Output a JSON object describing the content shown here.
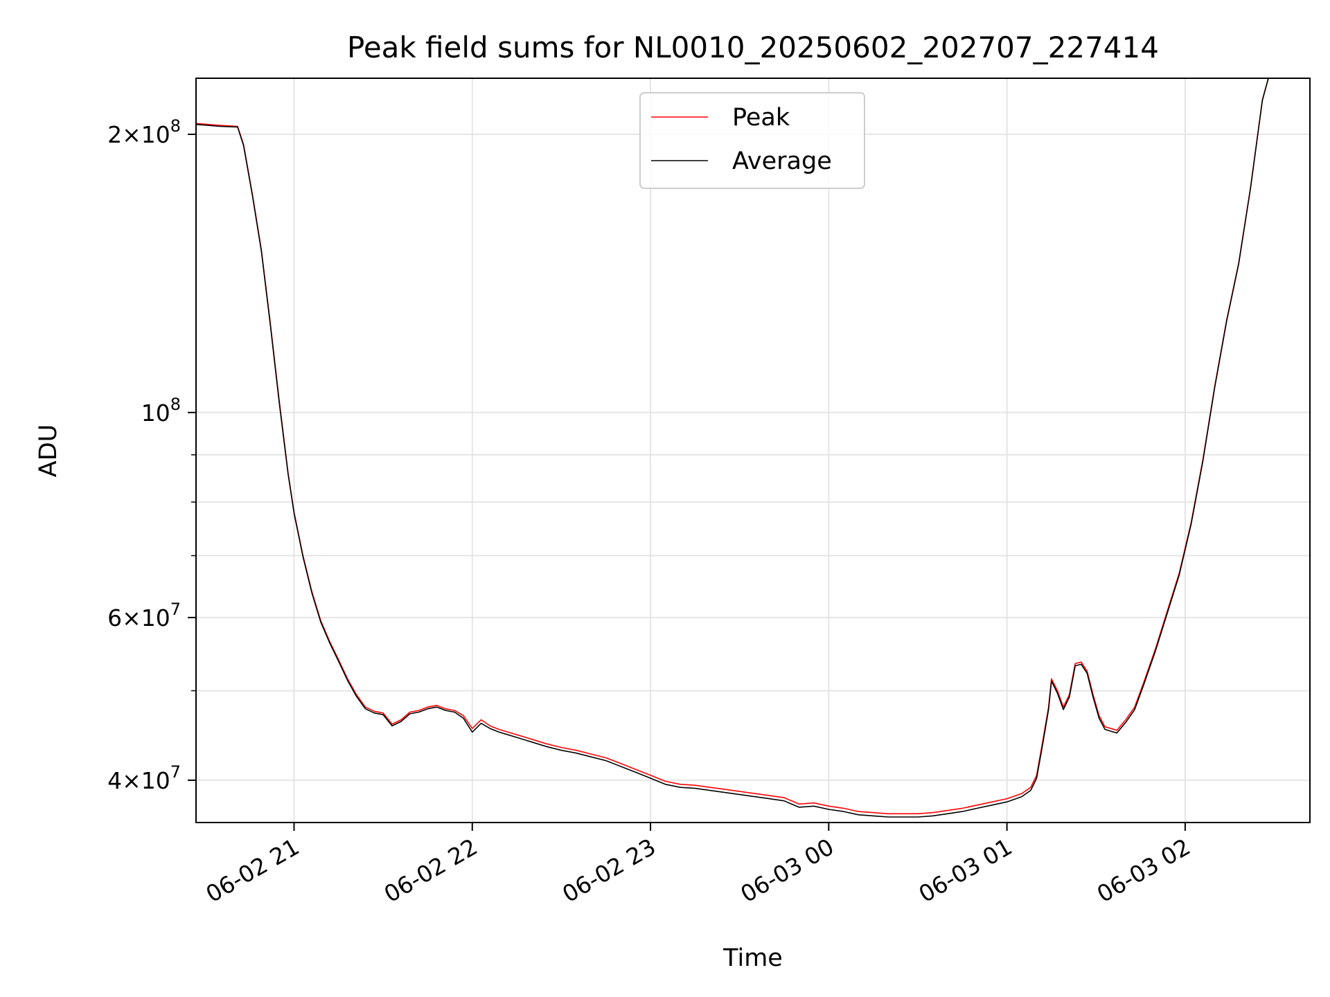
{
  "chart_data": {
    "type": "line",
    "title": "Peak field sums for NL0010_20250602_202707_227414",
    "xlabel": "Time",
    "ylabel": "ADU",
    "yscale": "log",
    "grid": true,
    "legend_position": "upper center",
    "xlim": [
      "2025-06-02 20:27",
      "2025-06-03 02:42"
    ],
    "ylim": [
      36000000,
      230000000
    ],
    "x_ticks": [
      {
        "value": "2025-06-02 21:00",
        "label": "06-02 21"
      },
      {
        "value": "2025-06-02 22:00",
        "label": "06-02 22"
      },
      {
        "value": "2025-06-02 23:00",
        "label": "06-02 23"
      },
      {
        "value": "2025-06-03 00:00",
        "label": "06-03 00"
      },
      {
        "value": "2025-06-03 01:00",
        "label": "06-03 01"
      },
      {
        "value": "2025-06-03 02:00",
        "label": "06-03 02"
      }
    ],
    "y_major_ticks": [
      {
        "value": 40000000,
        "mantissa": "4",
        "exponent": "7"
      },
      {
        "value": 60000000,
        "mantissa": "6",
        "exponent": "7"
      },
      {
        "value": 100000000,
        "mantissa": "",
        "exponent": "8"
      },
      {
        "value": 200000000,
        "mantissa": "2",
        "exponent": "8"
      }
    ],
    "y_minor_ticks": [
      50000000,
      70000000,
      80000000,
      90000000
    ],
    "series": [
      {
        "name": "Peak",
        "color": "#ff0000",
        "points": [
          [
            "2025-06-02 20:27",
            205500000
          ],
          [
            "2025-06-02 20:35",
            204500000
          ],
          [
            "2025-06-02 20:41",
            204000000
          ],
          [
            "2025-06-02 20:43",
            195000000
          ],
          [
            "2025-06-02 20:46",
            172000000
          ],
          [
            "2025-06-02 20:49",
            150000000
          ],
          [
            "2025-06-02 20:52",
            125000000
          ],
          [
            "2025-06-02 20:55",
            103000000
          ],
          [
            "2025-06-02 20:58",
            86000000
          ],
          [
            "2025-06-02 21:00",
            78000000
          ],
          [
            "2025-06-02 21:03",
            70000000
          ],
          [
            "2025-06-02 21:06",
            64000000
          ],
          [
            "2025-06-02 21:09",
            59500000
          ],
          [
            "2025-06-02 21:12",
            56500000
          ],
          [
            "2025-06-02 21:15",
            54000000
          ],
          [
            "2025-06-02 21:18",
            51500000
          ],
          [
            "2025-06-02 21:21",
            49500000
          ],
          [
            "2025-06-02 21:24",
            48000000
          ],
          [
            "2025-06-02 21:27",
            47500000
          ],
          [
            "2025-06-02 21:30",
            47300000
          ],
          [
            "2025-06-02 21:33",
            46000000
          ],
          [
            "2025-06-02 21:36",
            46500000
          ],
          [
            "2025-06-02 21:39",
            47400000
          ],
          [
            "2025-06-02 21:42",
            47600000
          ],
          [
            "2025-06-02 21:45",
            48000000
          ],
          [
            "2025-06-02 21:48",
            48200000
          ],
          [
            "2025-06-02 21:51",
            47800000
          ],
          [
            "2025-06-02 21:54",
            47600000
          ],
          [
            "2025-06-02 21:57",
            47000000
          ],
          [
            "2025-06-02 22:00",
            45500000
          ],
          [
            "2025-06-02 22:03",
            46500000
          ],
          [
            "2025-06-02 22:06",
            45800000
          ],
          [
            "2025-06-02 22:09",
            45400000
          ],
          [
            "2025-06-02 22:12",
            45100000
          ],
          [
            "2025-06-02 22:15",
            44800000
          ],
          [
            "2025-06-02 22:20",
            44300000
          ],
          [
            "2025-06-02 22:25",
            43800000
          ],
          [
            "2025-06-02 22:30",
            43400000
          ],
          [
            "2025-06-02 22:35",
            43100000
          ],
          [
            "2025-06-02 22:40",
            42700000
          ],
          [
            "2025-06-02 22:45",
            42300000
          ],
          [
            "2025-06-02 22:50",
            41700000
          ],
          [
            "2025-06-02 22:55",
            41100000
          ],
          [
            "2025-06-02 23:00",
            40500000
          ],
          [
            "2025-06-02 23:05",
            39900000
          ],
          [
            "2025-06-02 23:10",
            39600000
          ],
          [
            "2025-06-02 23:15",
            39500000
          ],
          [
            "2025-06-02 23:20",
            39300000
          ],
          [
            "2025-06-02 23:25",
            39100000
          ],
          [
            "2025-06-02 23:30",
            38900000
          ],
          [
            "2025-06-02 23:35",
            38700000
          ],
          [
            "2025-06-02 23:40",
            38500000
          ],
          [
            "2025-06-02 23:45",
            38300000
          ],
          [
            "2025-06-02 23:50",
            37700000
          ],
          [
            "2025-06-02 23:55",
            37800000
          ],
          [
            "2025-06-03 00:00",
            37500000
          ],
          [
            "2025-06-03 00:05",
            37300000
          ],
          [
            "2025-06-03 00:10",
            37000000
          ],
          [
            "2025-06-03 00:15",
            36900000
          ],
          [
            "2025-06-03 00:20",
            36800000
          ],
          [
            "2025-06-03 00:25",
            36800000
          ],
          [
            "2025-06-03 00:30",
            36800000
          ],
          [
            "2025-06-03 00:35",
            36900000
          ],
          [
            "2025-06-03 00:40",
            37100000
          ],
          [
            "2025-06-03 00:45",
            37300000
          ],
          [
            "2025-06-03 00:50",
            37600000
          ],
          [
            "2025-06-03 00:55",
            37900000
          ],
          [
            "2025-06-03 01:00",
            38200000
          ],
          [
            "2025-06-03 01:05",
            38700000
          ],
          [
            "2025-06-03 01:08",
            39300000
          ],
          [
            "2025-06-03 01:10",
            40500000
          ],
          [
            "2025-06-03 01:12",
            44000000
          ],
          [
            "2025-06-03 01:14",
            48000000
          ],
          [
            "2025-06-03 01:15",
            51500000
          ],
          [
            "2025-06-03 01:17",
            50000000
          ],
          [
            "2025-06-03 01:19",
            48000000
          ],
          [
            "2025-06-03 01:21",
            49500000
          ],
          [
            "2025-06-03 01:23",
            53500000
          ],
          [
            "2025-06-03 01:25",
            53700000
          ],
          [
            "2025-06-03 01:27",
            52500000
          ],
          [
            "2025-06-03 01:29",
            49500000
          ],
          [
            "2025-06-03 01:31",
            47000000
          ],
          [
            "2025-06-03 01:33",
            45700000
          ],
          [
            "2025-06-03 01:35",
            45500000
          ],
          [
            "2025-06-03 01:37",
            45300000
          ],
          [
            "2025-06-03 01:40",
            46500000
          ],
          [
            "2025-06-03 01:43",
            48000000
          ],
          [
            "2025-06-03 01:46",
            51000000
          ],
          [
            "2025-06-03 01:50",
            55500000
          ],
          [
            "2025-06-03 01:54",
            61000000
          ],
          [
            "2025-06-03 01:58",
            67000000
          ],
          [
            "2025-06-03 02:02",
            76000000
          ],
          [
            "2025-06-03 02:06",
            89000000
          ],
          [
            "2025-06-03 02:10",
            107000000
          ],
          [
            "2025-06-03 02:14",
            126000000
          ],
          [
            "2025-06-03 02:18",
            145000000
          ],
          [
            "2025-06-03 02:22",
            175000000
          ],
          [
            "2025-06-03 02:26",
            218000000
          ],
          [
            "2025-06-03 02:28",
            230000000
          ]
        ]
      },
      {
        "name": "Average",
        "color": "#000000",
        "points": [
          [
            "2025-06-02 20:27",
            205000000
          ],
          [
            "2025-06-02 20:35",
            204000000
          ],
          [
            "2025-06-02 20:41",
            203700000
          ],
          [
            "2025-06-02 20:43",
            194500000
          ],
          [
            "2025-06-02 20:46",
            171500000
          ],
          [
            "2025-06-02 20:49",
            149500000
          ],
          [
            "2025-06-02 20:52",
            124500000
          ],
          [
            "2025-06-02 20:55",
            102500000
          ],
          [
            "2025-06-02 20:58",
            85800000
          ],
          [
            "2025-06-02 21:00",
            77800000
          ],
          [
            "2025-06-02 21:03",
            69800000
          ],
          [
            "2025-06-02 21:06",
            63800000
          ],
          [
            "2025-06-02 21:09",
            59300000
          ],
          [
            "2025-06-02 21:12",
            56300000
          ],
          [
            "2025-06-02 21:15",
            53800000
          ],
          [
            "2025-06-02 21:18",
            51300000
          ],
          [
            "2025-06-02 21:21",
            49300000
          ],
          [
            "2025-06-02 21:24",
            47800000
          ],
          [
            "2025-06-02 21:27",
            47300000
          ],
          [
            "2025-06-02 21:30",
            47100000
          ],
          [
            "2025-06-02 21:33",
            45800000
          ],
          [
            "2025-06-02 21:36",
            46300000
          ],
          [
            "2025-06-02 21:39",
            47200000
          ],
          [
            "2025-06-02 21:42",
            47400000
          ],
          [
            "2025-06-02 21:45",
            47800000
          ],
          [
            "2025-06-02 21:48",
            48000000
          ],
          [
            "2025-06-02 21:51",
            47600000
          ],
          [
            "2025-06-02 21:54",
            47400000
          ],
          [
            "2025-06-02 21:57",
            46700000
          ],
          [
            "2025-06-02 22:00",
            45100000
          ],
          [
            "2025-06-02 22:03",
            46100000
          ],
          [
            "2025-06-02 22:06",
            45500000
          ],
          [
            "2025-06-02 22:09",
            45100000
          ],
          [
            "2025-06-02 22:12",
            44800000
          ],
          [
            "2025-06-02 22:15",
            44500000
          ],
          [
            "2025-06-02 22:20",
            44000000
          ],
          [
            "2025-06-02 22:25",
            43500000
          ],
          [
            "2025-06-02 22:30",
            43100000
          ],
          [
            "2025-06-02 22:35",
            42800000
          ],
          [
            "2025-06-02 22:40",
            42400000
          ],
          [
            "2025-06-02 22:45",
            42000000
          ],
          [
            "2025-06-02 22:50",
            41400000
          ],
          [
            "2025-06-02 22:55",
            40800000
          ],
          [
            "2025-06-02 23:00",
            40200000
          ],
          [
            "2025-06-02 23:05",
            39600000
          ],
          [
            "2025-06-02 23:10",
            39300000
          ],
          [
            "2025-06-02 23:15",
            39200000
          ],
          [
            "2025-06-02 23:20",
            39000000
          ],
          [
            "2025-06-02 23:25",
            38800000
          ],
          [
            "2025-06-02 23:30",
            38600000
          ],
          [
            "2025-06-02 23:35",
            38400000
          ],
          [
            "2025-06-02 23:40",
            38200000
          ],
          [
            "2025-06-02 23:45",
            38000000
          ],
          [
            "2025-06-02 23:50",
            37400000
          ],
          [
            "2025-06-02 23:55",
            37500000
          ],
          [
            "2025-06-03 00:00",
            37200000
          ],
          [
            "2025-06-03 00:05",
            37000000
          ],
          [
            "2025-06-03 00:10",
            36700000
          ],
          [
            "2025-06-03 00:15",
            36600000
          ],
          [
            "2025-06-03 00:20",
            36500000
          ],
          [
            "2025-06-03 00:25",
            36500000
          ],
          [
            "2025-06-03 00:30",
            36500000
          ],
          [
            "2025-06-03 00:35",
            36600000
          ],
          [
            "2025-06-03 00:40",
            36800000
          ],
          [
            "2025-06-03 00:45",
            37000000
          ],
          [
            "2025-06-03 00:50",
            37300000
          ],
          [
            "2025-06-03 00:55",
            37600000
          ],
          [
            "2025-06-03 01:00",
            37900000
          ],
          [
            "2025-06-03 01:05",
            38400000
          ],
          [
            "2025-06-03 01:08",
            39000000
          ],
          [
            "2025-06-03 01:10",
            40200000
          ],
          [
            "2025-06-03 01:12",
            43700000
          ],
          [
            "2025-06-03 01:14",
            47700000
          ],
          [
            "2025-06-03 01:15",
            51200000
          ],
          [
            "2025-06-03 01:17",
            49700000
          ],
          [
            "2025-06-03 01:19",
            47700000
          ],
          [
            "2025-06-03 01:21",
            49200000
          ],
          [
            "2025-06-03 01:23",
            53200000
          ],
          [
            "2025-06-03 01:25",
            53400000
          ],
          [
            "2025-06-03 01:27",
            52200000
          ],
          [
            "2025-06-03 01:29",
            49200000
          ],
          [
            "2025-06-03 01:31",
            46700000
          ],
          [
            "2025-06-03 01:33",
            45400000
          ],
          [
            "2025-06-03 01:35",
            45200000
          ],
          [
            "2025-06-03 01:37",
            45000000
          ],
          [
            "2025-06-03 01:40",
            46200000
          ],
          [
            "2025-06-03 01:43",
            47700000
          ],
          [
            "2025-06-03 01:46",
            50700000
          ],
          [
            "2025-06-03 01:50",
            55200000
          ],
          [
            "2025-06-03 01:54",
            60700000
          ],
          [
            "2025-06-03 01:58",
            66700000
          ],
          [
            "2025-06-03 02:02",
            75700000
          ],
          [
            "2025-06-03 02:06",
            88700000
          ],
          [
            "2025-06-03 02:10",
            106700000
          ],
          [
            "2025-06-03 02:14",
            125700000
          ],
          [
            "2025-06-03 02:18",
            144700000
          ],
          [
            "2025-06-03 02:22",
            174700000
          ],
          [
            "2025-06-03 02:26",
            217700000
          ],
          [
            "2025-06-03 02:28",
            230000000
          ]
        ]
      }
    ]
  }
}
